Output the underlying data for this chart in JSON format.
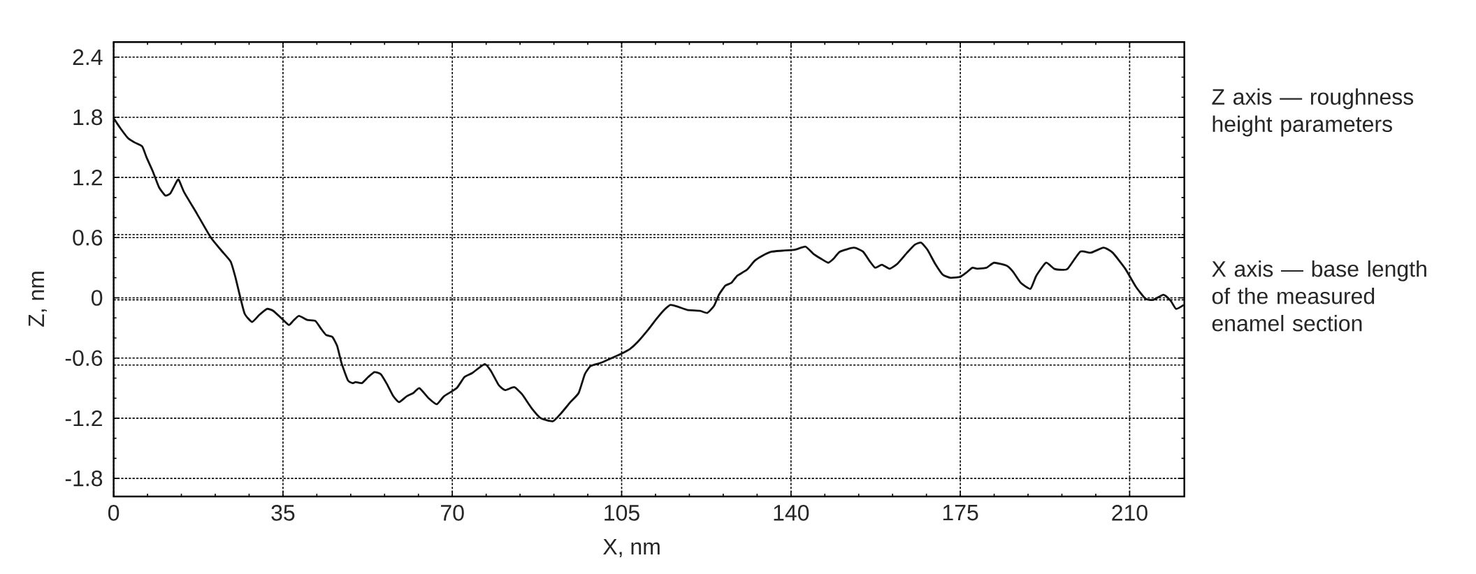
{
  "chart_data": {
    "type": "line",
    "xlabel": "X, nm",
    "ylabel": "Z, nm",
    "annotations": [
      "Z axis — roughness height parameters",
      "X axis — base length of the measured enamel section"
    ],
    "xlim": [
      0,
      221.3
    ],
    "ylim": [
      -1.98,
      2.55
    ],
    "xticks": [
      0,
      35,
      70,
      105,
      140,
      175,
      210
    ],
    "yticks": [
      -1.8,
      -1.2,
      -0.6,
      0,
      0.6,
      1.2,
      1.8,
      2.4
    ],
    "grid": true,
    "ref_lines": [
      {
        "axis": "y",
        "value": 0.63,
        "line_style": "dotted"
      },
      {
        "axis": "y",
        "value": -0.02,
        "line_style": "dotted"
      },
      {
        "axis": "y",
        "value": -0.67,
        "line_style": "dotted"
      }
    ],
    "x": [
      0,
      1.4,
      3.0,
      4.3,
      5.9,
      6.8,
      8.1,
      9.4,
      10.7,
      11.7,
      12.6,
      13.4,
      14.6,
      17.2,
      20.1,
      22.3,
      24.2,
      25.2,
      26.2,
      27.1,
      28.6,
      30.1,
      31.7,
      33.0,
      34.6,
      36.2,
      37.1,
      38.3,
      40.0,
      41.7,
      42.9,
      43.9,
      45.2,
      46.2,
      47.1,
      48.4,
      49.4,
      50.0,
      51.3,
      52.6,
      53.9,
      55.2,
      56.5,
      57.8,
      59.0,
      60.6,
      61.9,
      63.2,
      65.1,
      66.8,
      68.3,
      70.9,
      72.5,
      74.1,
      76.7,
      78.0,
      79.6,
      80.9,
      82.8,
      84.4,
      86.4,
      88.3,
      90.8,
      92.5,
      94.4,
      96.1,
      97.4,
      98.6,
      100.6,
      102.5,
      104.8,
      106.7,
      108.3,
      110.6,
      112.2,
      113.8,
      115.1,
      116.7,
      118.6,
      121.2,
      122.7,
      124.1,
      125.1,
      126.4,
      127.7,
      128.9,
      130.9,
      132.5,
      134.1,
      136.0,
      138.2,
      140.8,
      143.0,
      144.6,
      146.2,
      147.7,
      148.8,
      150.1,
      153.0,
      154.9,
      156.2,
      157.4,
      158.8,
      160.4,
      162.0,
      164.0,
      165.6,
      166.9,
      168.2,
      169.8,
      171.4,
      173.0,
      175.0,
      176.2,
      177.5,
      178.5,
      180.4,
      182.0,
      184.6,
      185.9,
      187.5,
      189.5,
      190.7,
      192.7,
      194.4,
      196.0,
      197.2,
      199.8,
      202.0,
      204.6,
      206.5,
      209.1,
      211.3,
      213.3,
      214.9,
      217.0,
      218.5,
      219.6,
      221.2
    ],
    "series": [
      {
        "color": "#111111",
        "values": [
          1.79,
          1.69,
          1.59,
          1.55,
          1.51,
          1.4,
          1.26,
          1.1,
          1.02,
          1.04,
          1.12,
          1.18,
          1.05,
          0.84,
          0.6,
          0.47,
          0.36,
          0.2,
          0.0,
          -0.16,
          -0.24,
          -0.17,
          -0.11,
          -0.13,
          -0.2,
          -0.27,
          -0.23,
          -0.18,
          -0.22,
          -0.23,
          -0.31,
          -0.37,
          -0.39,
          -0.48,
          -0.65,
          -0.82,
          -0.85,
          -0.84,
          -0.85,
          -0.79,
          -0.74,
          -0.76,
          -0.86,
          -0.98,
          -1.04,
          -0.98,
          -0.95,
          -0.9,
          -1.0,
          -1.06,
          -0.98,
          -0.9,
          -0.79,
          -0.75,
          -0.66,
          -0.73,
          -0.87,
          -0.92,
          -0.89,
          -0.96,
          -1.1,
          -1.2,
          -1.23,
          -1.15,
          -1.04,
          -0.95,
          -0.76,
          -0.68,
          -0.65,
          -0.61,
          -0.56,
          -0.51,
          -0.44,
          -0.31,
          -0.21,
          -0.12,
          -0.07,
          -0.09,
          -0.12,
          -0.13,
          -0.15,
          -0.08,
          0.03,
          0.12,
          0.15,
          0.22,
          0.28,
          0.37,
          0.42,
          0.46,
          0.47,
          0.48,
          0.51,
          0.44,
          0.39,
          0.35,
          0.39,
          0.46,
          0.5,
          0.46,
          0.37,
          0.3,
          0.33,
          0.29,
          0.34,
          0.45,
          0.53,
          0.55,
          0.48,
          0.34,
          0.23,
          0.2,
          0.21,
          0.25,
          0.3,
          0.29,
          0.3,
          0.35,
          0.32,
          0.26,
          0.15,
          0.09,
          0.22,
          0.35,
          0.29,
          0.28,
          0.29,
          0.46,
          0.45,
          0.5,
          0.45,
          0.29,
          0.11,
          -0.01,
          -0.02,
          0.03,
          -0.03,
          -0.11,
          -0.07
        ]
      }
    ]
  }
}
